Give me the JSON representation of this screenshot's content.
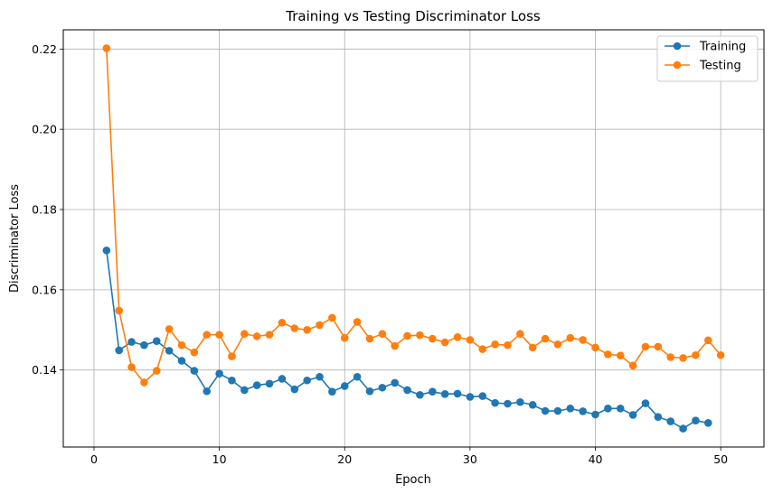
{
  "chart_data": {
    "type": "line",
    "title": "Training vs Testing Discriminator Loss",
    "xlabel": "Epoch",
    "ylabel": "Discriminator Loss",
    "xlim": [
      -2.45,
      53.45
    ],
    "ylim": [
      0.1208,
      0.2248
    ],
    "xticks": [
      0,
      10,
      20,
      30,
      40,
      50
    ],
    "yticks": [
      0.14,
      0.16,
      0.18,
      0.2,
      0.22
    ],
    "ytick_labels": [
      "0.14",
      "0.16",
      "0.18",
      "0.20",
      "0.22"
    ],
    "grid": true,
    "legend_position": "top-right",
    "series": [
      {
        "name": "Training",
        "color": "#1f77b4",
        "x": [
          1,
          2,
          3,
          4,
          5,
          6,
          7,
          8,
          9,
          10,
          11,
          12,
          13,
          14,
          15,
          16,
          17,
          18,
          19,
          20,
          21,
          22,
          23,
          24,
          25,
          26,
          27,
          28,
          29,
          30,
          31,
          32,
          33,
          34,
          35,
          36,
          37,
          38,
          39,
          40,
          41,
          42,
          43,
          44,
          45,
          46,
          47,
          48,
          49
        ],
        "values": [
          0.1698,
          0.1449,
          0.147,
          0.1462,
          0.1472,
          0.1448,
          0.1423,
          0.1398,
          0.1347,
          0.1391,
          0.1374,
          0.135,
          0.1362,
          0.1366,
          0.1378,
          0.1352,
          0.1374,
          0.1383,
          0.1346,
          0.136,
          0.1383,
          0.1347,
          0.1356,
          0.1368,
          0.135,
          0.1338,
          0.1346,
          0.134,
          0.1341,
          0.1333,
          0.1335,
          0.1318,
          0.1316,
          0.132,
          0.1313,
          0.1298,
          0.1298,
          0.1304,
          0.1297,
          0.1289,
          0.1304,
          0.1304,
          0.1288,
          0.1317,
          0.1283,
          0.1272,
          0.1254,
          0.1274,
          0.1268
        ]
      },
      {
        "name": "Testing",
        "color": "#ff7f0e",
        "x": [
          1,
          2,
          3,
          4,
          5,
          6,
          7,
          8,
          9,
          10,
          11,
          12,
          13,
          14,
          15,
          16,
          17,
          18,
          19,
          20,
          21,
          22,
          23,
          24,
          25,
          26,
          27,
          28,
          29,
          30,
          31,
          32,
          33,
          34,
          35,
          36,
          37,
          38,
          39,
          40,
          41,
          42,
          43,
          44,
          45,
          46,
          47,
          48,
          49,
          50
        ],
        "values": [
          0.2202,
          0.1548,
          0.1407,
          0.1369,
          0.1398,
          0.1502,
          0.1462,
          0.1444,
          0.1488,
          0.1488,
          0.1434,
          0.149,
          0.1484,
          0.1488,
          0.1518,
          0.1504,
          0.15,
          0.1512,
          0.153,
          0.148,
          0.152,
          0.1478,
          0.149,
          0.146,
          0.1485,
          0.1487,
          0.1478,
          0.1469,
          0.1482,
          0.1475,
          0.1452,
          0.1464,
          0.1462,
          0.149,
          0.1456,
          0.1478,
          0.1464,
          0.148,
          0.1475,
          0.1456,
          0.1439,
          0.1436,
          0.1411,
          0.1458,
          0.1458,
          0.1432,
          0.143,
          0.1437,
          0.1474,
          0.1437
        ]
      }
    ]
  }
}
